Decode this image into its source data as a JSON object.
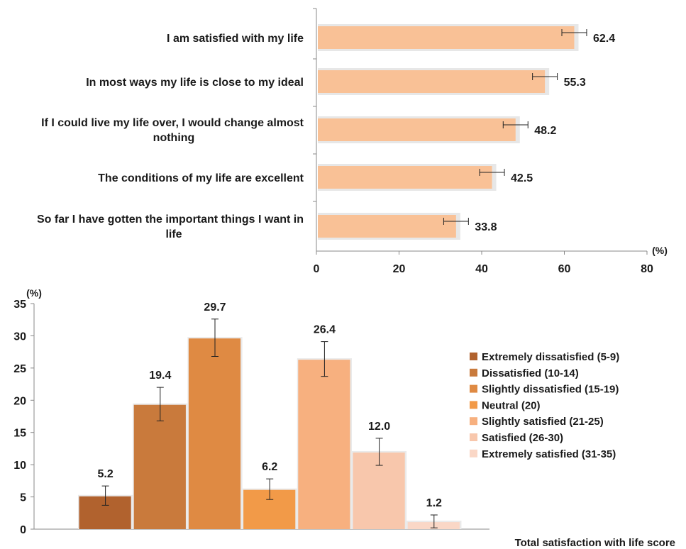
{
  "chart_data": [
    {
      "type": "bar",
      "orientation": "horizontal",
      "categories": [
        "I am satisfied with my life",
        "In most ways my life is close to my ideal",
        "If I could live my life over, I would change almost nothing",
        "The conditions of my life are excellent",
        "So far I have gotten the important things I want in life"
      ],
      "category_lines": [
        [
          "I am satisfied with my life"
        ],
        [
          "In most ways my life is close to my ideal"
        ],
        [
          "If I could live my life over, I would change almost",
          "nothing"
        ],
        [
          "The conditions of my life are excellent"
        ],
        [
          "So far I have gotten the important things I want in",
          "life"
        ]
      ],
      "values": [
        62.4,
        55.3,
        48.2,
        42.5,
        33.8
      ],
      "value_labels": [
        "62.4",
        "55.3",
        "48.2",
        "42.5",
        "33.8"
      ],
      "error_bars": [
        3.0,
        3.0,
        3.0,
        3.0,
        3.0
      ],
      "xlim": [
        0,
        80
      ],
      "xticks": [
        "0",
        "20",
        "40",
        "60",
        "80"
      ],
      "unit_label": "(%)",
      "bar_color": "#f9c196",
      "grid": false
    },
    {
      "type": "bar",
      "categories": [
        "Extremely dissatisfied (5-9)",
        "Dissatisfied (10-14)",
        "Slightly dissatisfied (15-19)",
        "Neutral (20)",
        "Slightly satisfied (21-25)",
        "Satisfied (26-30)",
        "Extremely satisfied (31-35)"
      ],
      "values": [
        5.2,
        19.4,
        29.7,
        6.2,
        26.4,
        12.0,
        1.2
      ],
      "value_labels": [
        "5.2",
        "19.4",
        "29.7",
        "6.2",
        "26.4",
        "12.0",
        "1.2"
      ],
      "error_bars": [
        1.5,
        2.6,
        2.9,
        1.6,
        2.7,
        2.1,
        1.0
      ],
      "colors": [
        "#b1622e",
        "#c97a3c",
        "#df8a43",
        "#f29a48",
        "#f7b07f",
        "#f8c7ac",
        "#fad7c6"
      ],
      "ylim": [
        0,
        35
      ],
      "yticks": [
        "0",
        "5",
        "10",
        "15",
        "20",
        "25",
        "30",
        "35"
      ],
      "unit_label": "(%)",
      "xlabel": "Total satisfaction with life score",
      "legend_position": "right",
      "grid": false
    }
  ]
}
